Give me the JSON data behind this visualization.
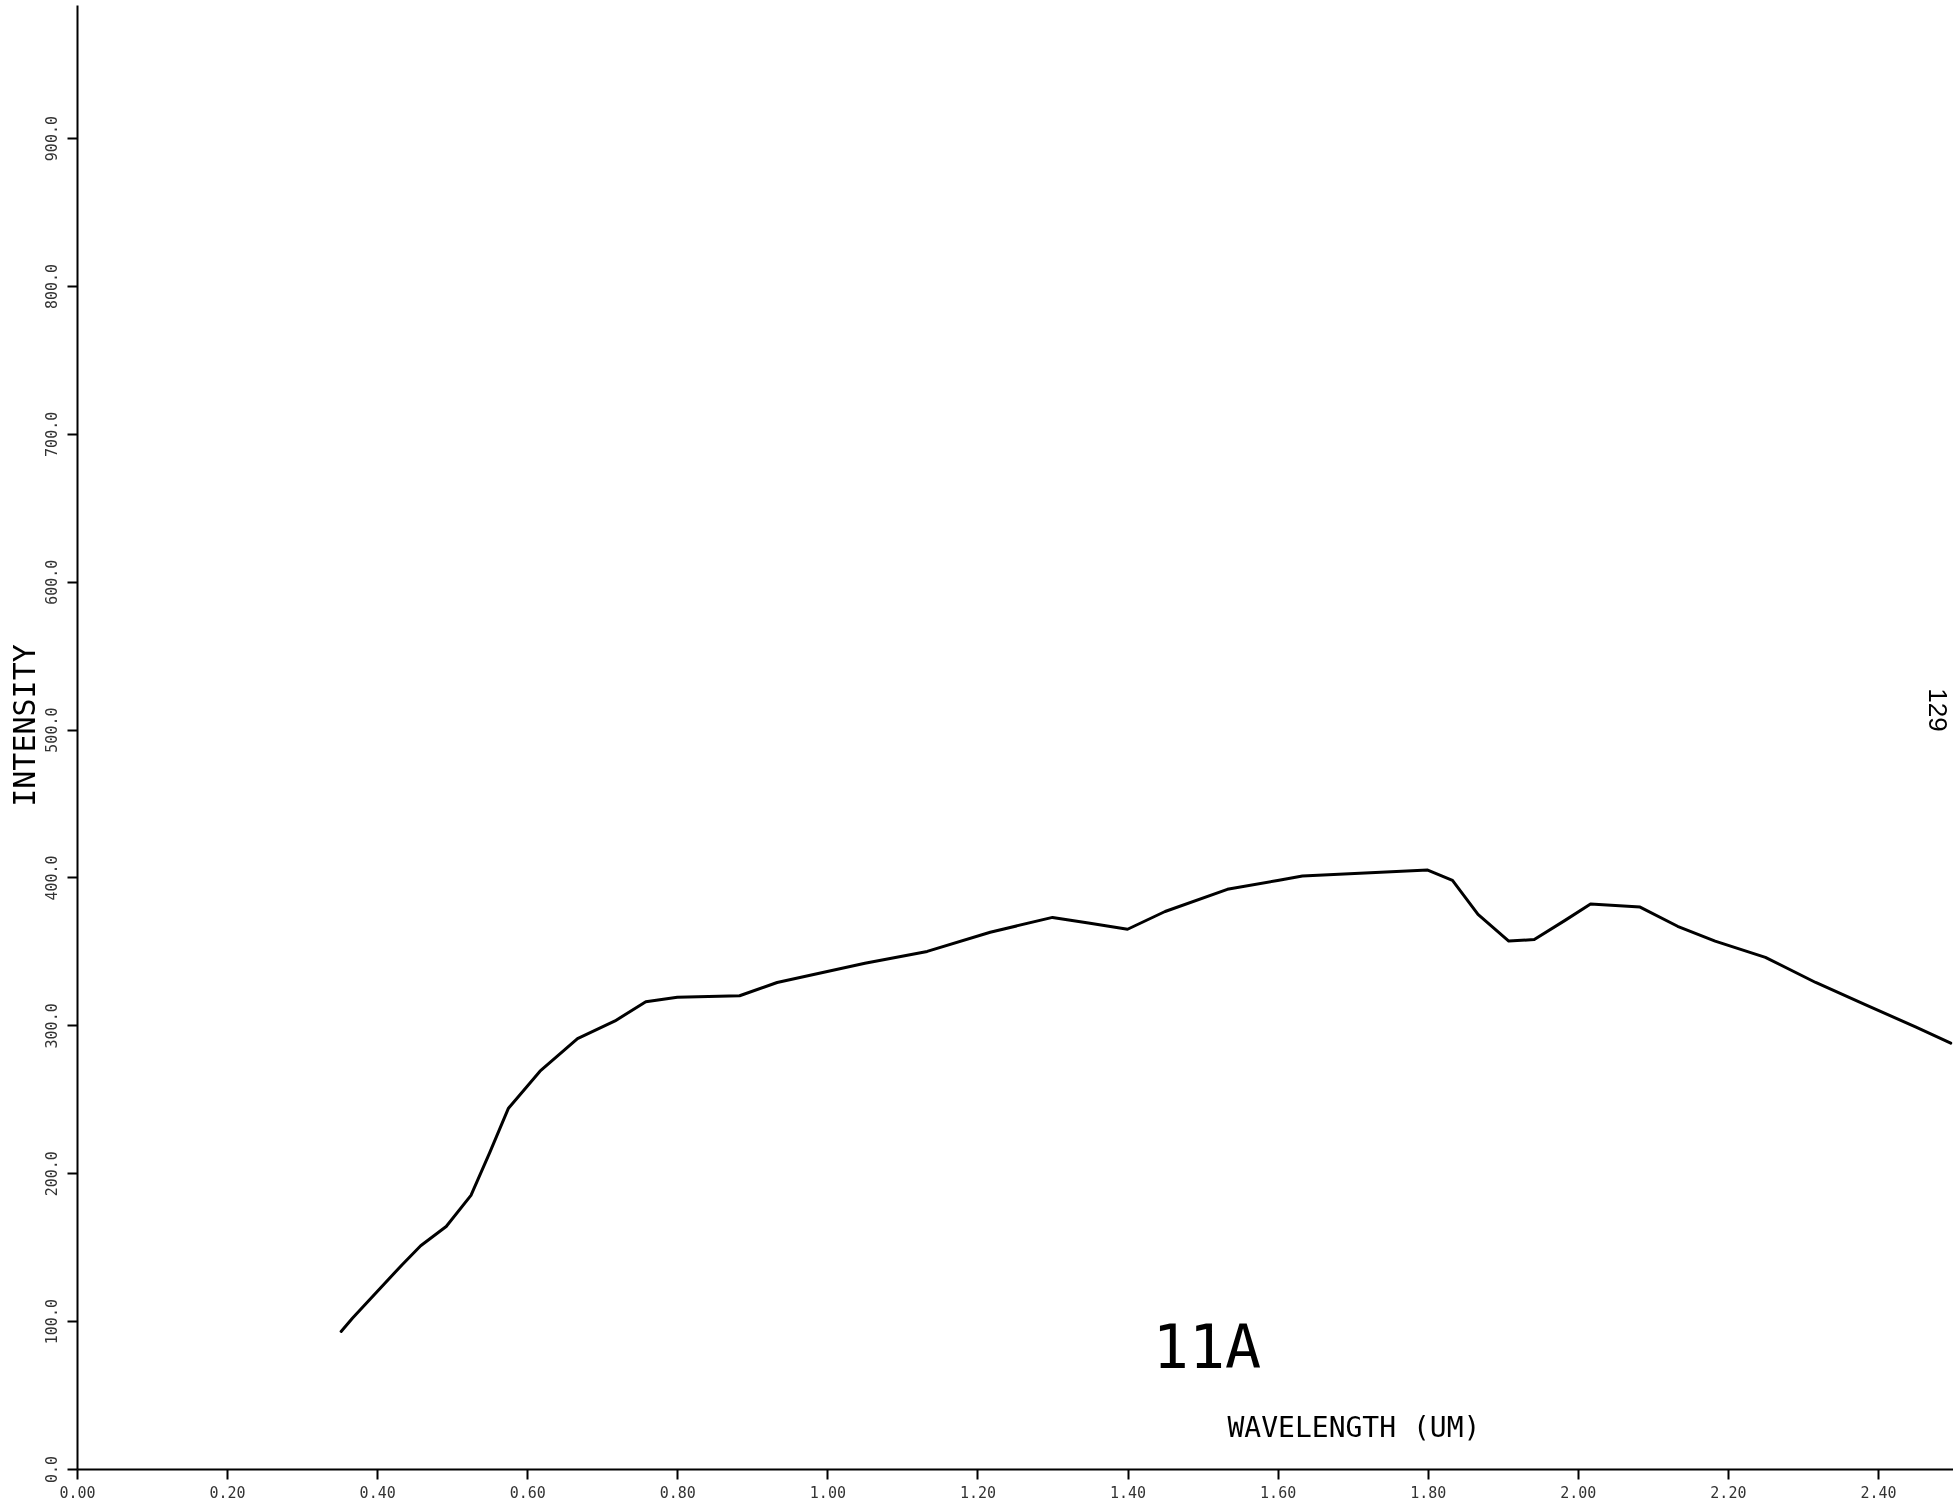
{
  "chart_data": {
    "type": "line",
    "xlabel": "WAVELENGTH (UM)",
    "ylabel": "INTENSITY",
    "annotations": [
      "11A",
      "129"
    ],
    "x": [
      0.352,
      0.367,
      0.433,
      0.458,
      0.492,
      0.525,
      0.55,
      0.575,
      0.617,
      0.667,
      0.717,
      0.758,
      0.8,
      0.883,
      0.933,
      1.05,
      1.133,
      1.217,
      1.3,
      1.35,
      1.4,
      1.45,
      1.533,
      1.6,
      1.633,
      1.8,
      1.833,
      1.867,
      1.908,
      1.942,
      1.983,
      2.017,
      2.083,
      2.133,
      2.183,
      2.25,
      2.317,
      2.383,
      2.45,
      2.497
    ],
    "series": [
      {
        "color": "#000000",
        "values": [
          93,
          102,
          138,
          151,
          164,
          185,
          214,
          244,
          269,
          291,
          303,
          316,
          319,
          320,
          329,
          342,
          350,
          363,
          373,
          369,
          365,
          377,
          392,
          398,
          401,
          405,
          398,
          375,
          357,
          358,
          371,
          382,
          380,
          367,
          357,
          346,
          329,
          314,
          299,
          288
        ]
      }
    ],
    "xlim": [
      0,
      2.5
    ],
    "ylim": [
      0,
      990
    ],
    "xticks": [
      {
        "value": 0,
        "label": "0.00"
      },
      {
        "value": 0.2,
        "label": "0.20"
      },
      {
        "value": 0.4,
        "label": "0.40"
      },
      {
        "value": 0.6,
        "label": "0.60"
      },
      {
        "value": 0.8,
        "label": "0.80"
      },
      {
        "value": 1,
        "label": "1.00"
      },
      {
        "value": 1.2,
        "label": "1.20"
      },
      {
        "value": 1.4,
        "label": "1.40"
      },
      {
        "value": 1.6,
        "label": "1.60"
      },
      {
        "value": 1.8,
        "label": "1.80"
      },
      {
        "value": 2,
        "label": "2.00"
      },
      {
        "value": 2.2,
        "label": "2.20"
      },
      {
        "value": 2.4,
        "label": "2.40"
      }
    ],
    "yticks": [
      {
        "value": 0,
        "label": "0.0"
      },
      {
        "value": 100,
        "label": "100.0"
      },
      {
        "value": 200,
        "label": "200.0"
      },
      {
        "value": 300,
        "label": "300.0"
      },
      {
        "value": 400,
        "label": "400.0"
      },
      {
        "value": 500,
        "label": "500.0"
      },
      {
        "value": 600,
        "label": "600.0"
      },
      {
        "value": 700,
        "label": "700.0"
      },
      {
        "value": 800,
        "label": "800.0"
      },
      {
        "value": 900,
        "label": "900.0"
      }
    ],
    "grid": false,
    "marker": "none",
    "line_style": "solid"
  }
}
